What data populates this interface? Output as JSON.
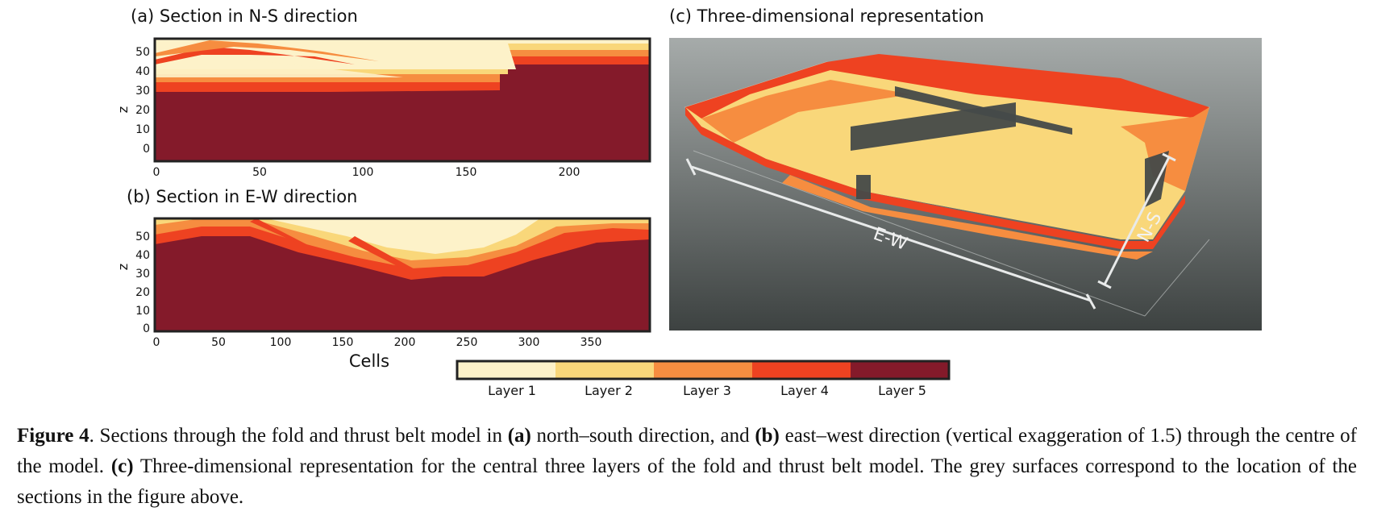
{
  "panel_a": {
    "title": "(a) Section in N-S direction",
    "ylabel": "z",
    "xticks": [
      "0",
      "50",
      "100",
      "150",
      "200"
    ],
    "yticks": [
      "0",
      "10",
      "20",
      "30",
      "40",
      "50"
    ]
  },
  "panel_b": {
    "title": "(b) Section in E-W direction",
    "ylabel": "z",
    "xlabel": "Cells",
    "xticks": [
      "0",
      "50",
      "100",
      "150",
      "200",
      "250",
      "300",
      "350"
    ],
    "yticks": [
      "0",
      "10",
      "20",
      "30",
      "40",
      "50"
    ]
  },
  "panel_c": {
    "title": "(c) Three-dimensional representation",
    "label_ew": "E-W",
    "label_ns": "N-S"
  },
  "legend": {
    "items": [
      {
        "label": "Layer 1",
        "color": "#fdf2c9"
      },
      {
        "label": "Layer 2",
        "color": "#f9d77a"
      },
      {
        "label": "Layer 3",
        "color": "#f68d40"
      },
      {
        "label": "Layer 4",
        "color": "#ee4221"
      },
      {
        "label": "Layer 5",
        "color": "#841a2a"
      }
    ]
  },
  "caption": {
    "figure_label": "Figure 4",
    "part1": ". Sections through the fold and thrust belt model in ",
    "a": "(a)",
    "part2": " north–south direction, and ",
    "b": "(b)",
    "part3": " east–west direction (vertical exaggeration of 1.5) through the centre of the model. ",
    "c": "(c)",
    "part4": " Three-dimensional representation for the central three layers of the fold and thrust belt model. The grey surfaces correspond to the location of the sections in the figure above."
  }
}
